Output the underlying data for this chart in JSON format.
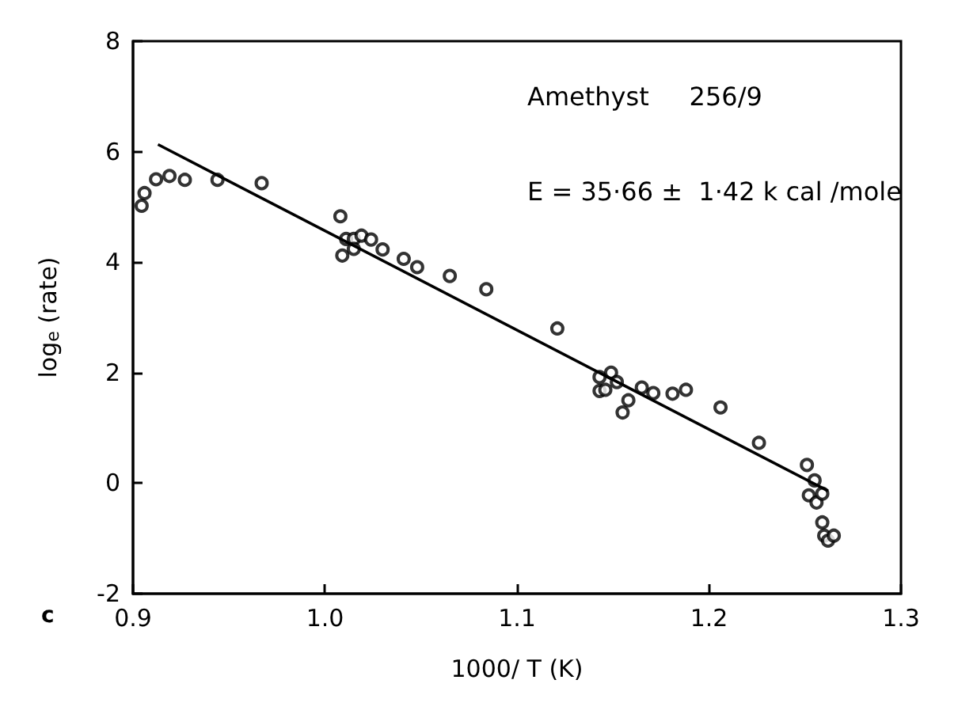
{
  "chart_data": {
    "type": "scatter",
    "xlabel": "1000/ T (K)",
    "ylabel": "log$_{e}$ (rate)",
    "xlim": [
      0.9,
      1.3
    ],
    "xticks": [
      0.9,
      {
        "value": 1.0,
        "label": "1.0"
      },
      1.1,
      1.2,
      1.3
    ],
    "ylim": [
      -2,
      8
    ],
    "yticks": [
      -2,
      0,
      2,
      4,
      6,
      8
    ],
    "grid": false,
    "annotations": [
      "Amethyst     256/9",
      "E = 35·66 ±  1·42 k cal /mole",
      "c"
    ],
    "series": [
      {
        "type": "scatter",
        "color": "#000000",
        "marker": "circle",
        "x": [
          0.9045,
          0.906,
          0.912,
          0.919,
          0.927,
          0.944,
          0.967,
          1.008,
          1.009,
          1.011,
          1.015,
          1.015,
          1.019,
          1.024,
          1.03,
          1.041,
          1.048,
          1.065,
          1.084,
          1.121,
          1.143,
          1.143,
          1.146,
          1.149,
          1.152,
          1.155,
          1.158,
          1.165,
          1.171,
          1.181,
          1.188,
          1.206,
          1.226,
          1.251,
          1.255,
          1.252,
          1.256,
          1.259,
          1.259,
          1.26,
          1.262,
          1.265
        ],
        "values": [
          5.02,
          5.25,
          5.5,
          5.56,
          5.49,
          5.49,
          5.43,
          4.83,
          4.12,
          4.42,
          4.42,
          4.24,
          4.48,
          4.41,
          4.23,
          4.06,
          3.91,
          3.75,
          3.51,
          2.8,
          1.92,
          1.67,
          1.69,
          2.0,
          1.83,
          1.28,
          1.5,
          1.73,
          1.63,
          1.62,
          1.69,
          1.37,
          0.73,
          0.33,
          0.05,
          -0.22,
          -0.35,
          -0.19,
          -0.71,
          -0.95,
          -1.04,
          -0.95
        ]
      },
      {
        "type": "line",
        "color": "#000000",
        "line_style": "solid",
        "x": [
          0.913,
          1.262
        ],
        "values": [
          6.13,
          -0.14
        ]
      }
    ]
  }
}
